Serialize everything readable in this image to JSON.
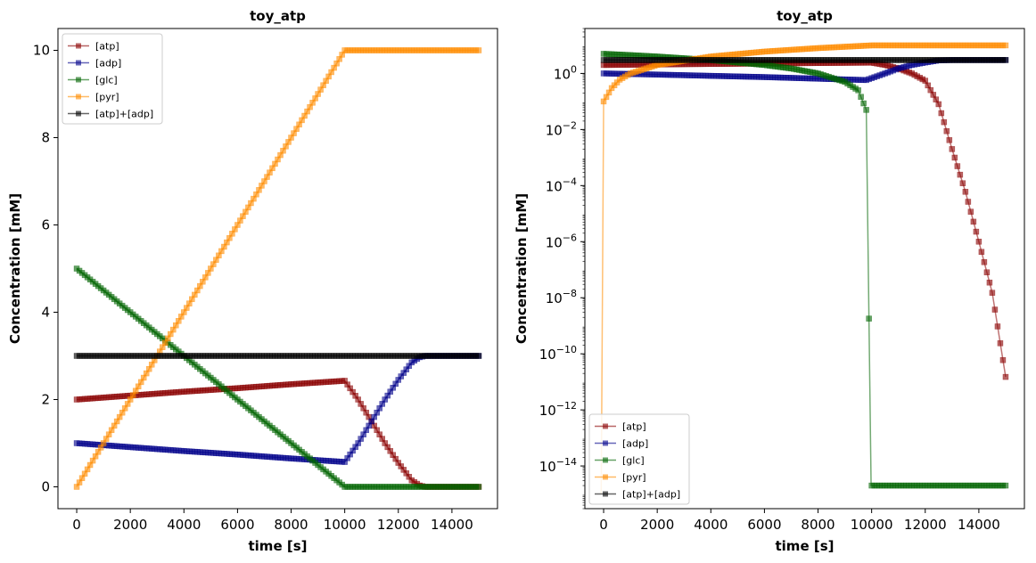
{
  "chart_data": [
    {
      "type": "line",
      "title": "toy_atp",
      "xlabel": "time [s]",
      "ylabel": "Concentration [mM]",
      "yscale": "linear",
      "xlim": [
        -700,
        15700
      ],
      "ylim": [
        -0.5,
        10.5
      ],
      "xticks": [
        0,
        2000,
        4000,
        6000,
        8000,
        10000,
        12000,
        14000
      ],
      "xtick_labels": [
        "0",
        "2000",
        "4000",
        "6000",
        "8000",
        "10000",
        "12000",
        "14000"
      ],
      "yticks": [
        0,
        2,
        4,
        6,
        8,
        10
      ],
      "ytick_labels": [
        "0",
        "2",
        "4",
        "6",
        "8",
        "10"
      ],
      "grid": false,
      "legend_position": "top-left",
      "series": [
        {
          "name": "[atp]",
          "color": "#8b0000",
          "x": [
            0,
            2000,
            4000,
            6000,
            8000,
            10000,
            10500,
            11000,
            11500,
            12000,
            12500,
            12800,
            13000,
            14000,
            15000
          ],
          "y": [
            2.0,
            2.09,
            2.18,
            2.26,
            2.35,
            2.43,
            2.0,
            1.5,
            1.0,
            0.55,
            0.15,
            0.03,
            0.0,
            0.0,
            0.0
          ]
        },
        {
          "name": "[adp]",
          "color": "#00008b",
          "x": [
            0,
            2000,
            4000,
            6000,
            8000,
            10000,
            10500,
            11000,
            11500,
            12000,
            12500,
            12800,
            13000,
            14000,
            15000
          ],
          "y": [
            1.0,
            0.91,
            0.82,
            0.74,
            0.65,
            0.57,
            1.0,
            1.5,
            2.0,
            2.45,
            2.85,
            2.97,
            3.0,
            3.0,
            3.0
          ]
        },
        {
          "name": "[glc]",
          "color": "#006400",
          "x": [
            0,
            2000,
            4000,
            6000,
            8000,
            10000,
            12000,
            14000,
            15000
          ],
          "y": [
            5.0,
            4.0,
            3.0,
            2.0,
            1.0,
            0.0,
            0.0,
            0.0,
            0.0
          ]
        },
        {
          "name": "[pyr]",
          "color": "#ff8c00",
          "x": [
            0,
            2000,
            4000,
            6000,
            8000,
            10000,
            12000,
            14000,
            15000
          ],
          "y": [
            0.0,
            2.0,
            4.0,
            6.0,
            8.0,
            10.0,
            10.0,
            10.0,
            10.0
          ]
        },
        {
          "name": "[atp]+[adp]",
          "color": "#000000",
          "x": [
            0,
            5000,
            10000,
            15000
          ],
          "y": [
            3.0,
            3.0,
            3.0,
            3.0
          ]
        }
      ]
    },
    {
      "type": "line",
      "title": "toy_atp",
      "xlabel": "time [s]",
      "ylabel": "Concentration [mM]",
      "yscale": "log",
      "xlim": [
        -700,
        15700
      ],
      "ylim": [
        3e-16,
        40
      ],
      "xticks": [
        0,
        2000,
        4000,
        6000,
        8000,
        10000,
        12000,
        14000
      ],
      "xtick_labels": [
        "0",
        "2000",
        "4000",
        "6000",
        "8000",
        "10000",
        "12000",
        "14000"
      ],
      "yticks": [
        1e-14,
        1e-12,
        1e-10,
        1e-08,
        1e-06,
        0.0001,
        0.01,
        1
      ],
      "ytick_labels": [
        {
          "base": "10",
          "exp": "−14"
        },
        {
          "base": "10",
          "exp": "−12"
        },
        {
          "base": "10",
          "exp": "−10"
        },
        {
          "base": "10",
          "exp": "−8"
        },
        {
          "base": "10",
          "exp": "−6"
        },
        {
          "base": "10",
          "exp": "−4"
        },
        {
          "base": "10",
          "exp": "−2"
        },
        {
          "base": "10",
          "exp": "0"
        }
      ],
      "grid": false,
      "legend_position": "bottom-left",
      "series": [
        {
          "name": "[atp]",
          "color": "#8b0000",
          "x": [
            0,
            2000,
            4000,
            6000,
            8000,
            10000,
            10500,
            11000,
            11500,
            12000,
            12500,
            13000,
            13500,
            14000,
            14500,
            15000
          ],
          "y": [
            2.0,
            2.09,
            2.18,
            2.26,
            2.35,
            2.43,
            2.0,
            1.5,
            1.0,
            0.55,
            0.08,
            0.002,
            6e-05,
            1e-06,
            1.5e-08,
            1.5e-11
          ]
        },
        {
          "name": "[adp]",
          "color": "#00008b",
          "x": [
            0,
            2000,
            4000,
            6000,
            8000,
            9800,
            10500,
            11000,
            11500,
            12000,
            12500,
            13000,
            15000
          ],
          "y": [
            1.0,
            0.91,
            0.82,
            0.74,
            0.65,
            0.58,
            1.0,
            1.5,
            2.0,
            2.45,
            2.92,
            3.0,
            3.0
          ]
        },
        {
          "name": "[glc]",
          "color": "#006400",
          "x": [
            0,
            1000,
            2000,
            4000,
            6000,
            7000,
            8000,
            9000,
            9500,
            9800,
            9980,
            15000
          ],
          "y": [
            5.0,
            4.5,
            4.0,
            3.0,
            2.0,
            1.5,
            1.0,
            0.5,
            0.25,
            0.05,
            2e-15,
            2e-15
          ]
        },
        {
          "name": "[pyr]",
          "color": "#ff8c00",
          "x": [
            -90,
            0,
            300,
            600,
            1000,
            2000,
            4000,
            6000,
            8000,
            10000,
            12000,
            15000
          ],
          "y": [
            1e-15,
            0.1,
            0.3,
            0.6,
            1.0,
            2.0,
            4.0,
            6.0,
            8.0,
            10.0,
            10.0,
            10.0
          ]
        },
        {
          "name": "[atp]+[adp]",
          "color": "#000000",
          "x": [
            0,
            5000,
            10000,
            15000
          ],
          "y": [
            3.0,
            3.0,
            3.0,
            3.0
          ]
        }
      ]
    }
  ]
}
